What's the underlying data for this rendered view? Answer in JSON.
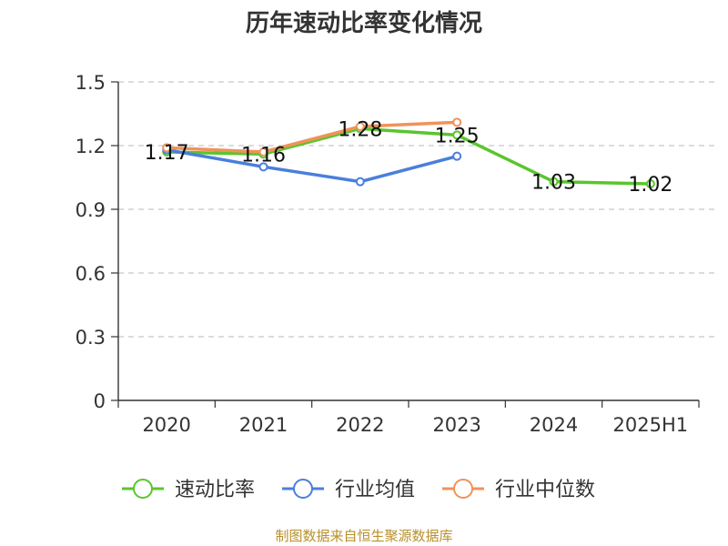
{
  "chart_data": {
    "type": "line",
    "title": "历年速动比率变化情况",
    "categories": [
      "2020",
      "2021",
      "2022",
      "2023",
      "2024",
      "2025H1"
    ],
    "y_ticks": [
      "0",
      "0.3",
      "0.6",
      "0.9",
      "1.2",
      "1.5"
    ],
    "ylim": [
      0,
      1.5
    ],
    "grid": true,
    "legend_position": "bottom",
    "series": [
      {
        "name": "速动比率",
        "color": "#5ac52e",
        "values": [
          1.17,
          1.16,
          1.28,
          1.25,
          1.03,
          1.02
        ],
        "labels": [
          "1.17",
          "1.16",
          "1.28",
          "1.25",
          "1.03",
          "1.02"
        ]
      },
      {
        "name": "行业均值",
        "color": "#4a7fdb",
        "values": [
          1.18,
          1.1,
          1.03,
          1.15,
          null,
          null
        ]
      },
      {
        "name": "行业中位数",
        "color": "#f0925a",
        "values": [
          1.19,
          1.17,
          1.29,
          1.31,
          null,
          null
        ]
      }
    ],
    "source": "制图数据来自恒生聚源数据库"
  }
}
